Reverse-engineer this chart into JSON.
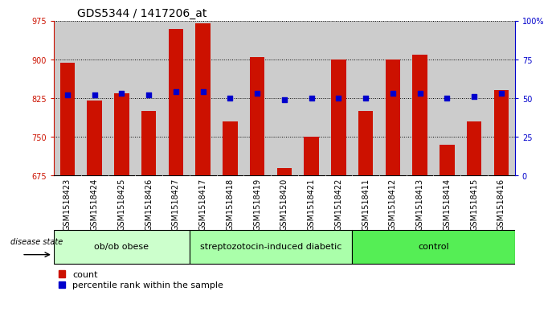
{
  "title": "GDS5344 / 1417206_at",
  "samples": [
    "GSM1518423",
    "GSM1518424",
    "GSM1518425",
    "GSM1518426",
    "GSM1518427",
    "GSM1518417",
    "GSM1518418",
    "GSM1518419",
    "GSM1518420",
    "GSM1518421",
    "GSM1518422",
    "GSM1518411",
    "GSM1518412",
    "GSM1518413",
    "GSM1518414",
    "GSM1518415",
    "GSM1518416"
  ],
  "counts": [
    893,
    820,
    835,
    800,
    960,
    970,
    780,
    905,
    690,
    750,
    900,
    800,
    900,
    910,
    735,
    780,
    840
  ],
  "percentiles": [
    52,
    52,
    53,
    52,
    54,
    54,
    50,
    53,
    49,
    50,
    50,
    50,
    53,
    53,
    50,
    51,
    53
  ],
  "groups": [
    {
      "label": "ob/ob obese",
      "start": 0,
      "end": 5,
      "color": "#ccffcc"
    },
    {
      "label": "streptozotocin-induced diabetic",
      "start": 5,
      "end": 11,
      "color": "#aaffaa"
    },
    {
      "label": "control",
      "start": 11,
      "end": 17,
      "color": "#55ee55"
    }
  ],
  "ylim_left": [
    675,
    975
  ],
  "ylim_right": [
    0,
    100
  ],
  "yticks_left": [
    675,
    750,
    825,
    900,
    975
  ],
  "yticks_right": [
    0,
    25,
    50,
    75,
    100
  ],
  "ytick_labels_right": [
    "0",
    "25",
    "50",
    "75",
    "100%"
  ],
  "bar_color": "#cc1100",
  "dot_color": "#0000cc",
  "bar_bottom": 675,
  "bar_width": 0.55,
  "col_bg_color": "#cccccc",
  "plot_bg_color": "#ffffff",
  "title_fontsize": 10,
  "tick_fontsize": 7,
  "label_fontsize": 8,
  "disease_state_label": "disease state",
  "legend_count": "count",
  "legend_percentile": "percentile rank within the sample"
}
